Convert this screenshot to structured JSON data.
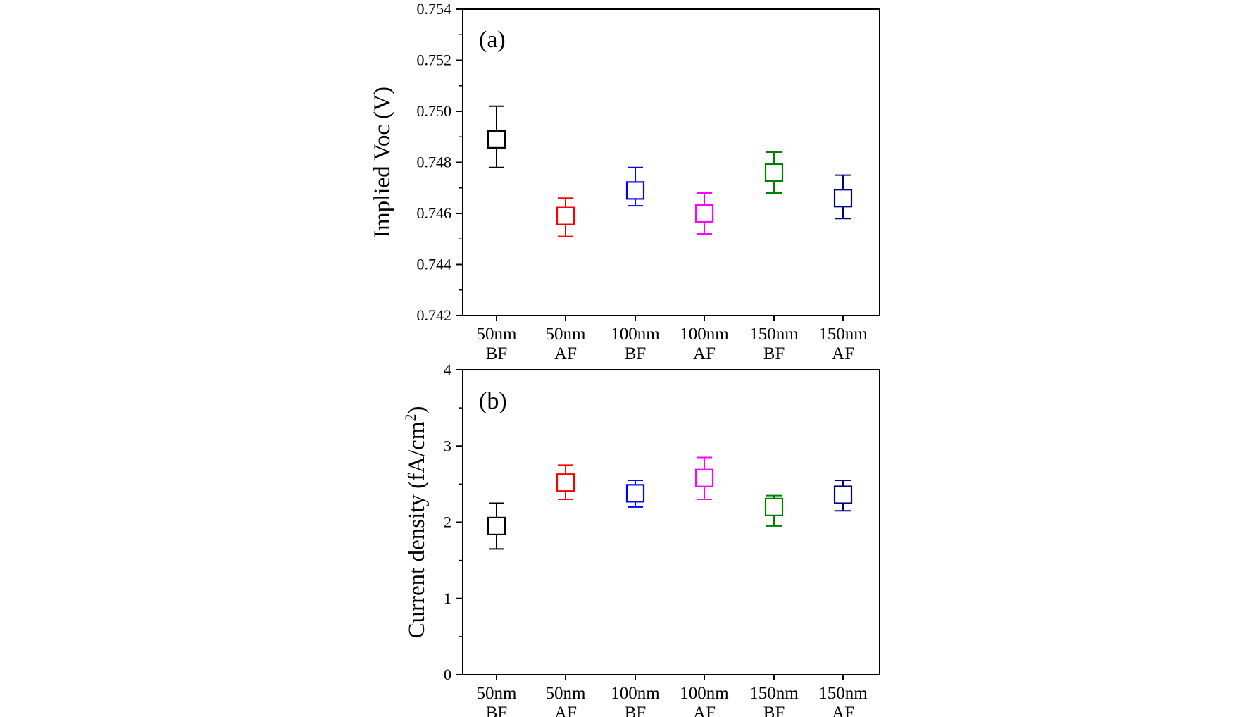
{
  "chart_data": [
    {
      "type": "scatter",
      "panel_label": "(a)",
      "ylabel": "Implied Voc (V)",
      "ylim": [
        0.742,
        0.754
      ],
      "yticks": [
        "0.742",
        "0.744",
        "0.746",
        "0.748",
        "0.750",
        "0.752",
        "0.754"
      ],
      "categories": [
        {
          "line1": "50nm",
          "line2": "BF"
        },
        {
          "line1": "50nm",
          "line2": "AF"
        },
        {
          "line1": "100nm",
          "line2": "BF"
        },
        {
          "line1": "100nm",
          "line2": "AF"
        },
        {
          "line1": "150nm",
          "line2": "BF"
        },
        {
          "line1": "150nm",
          "line2": "AF"
        }
      ],
      "points": [
        {
          "value": 0.7489,
          "err_low": 0.7478,
          "err_high": 0.7502,
          "color": "#000000"
        },
        {
          "value": 0.7459,
          "err_low": 0.7451,
          "err_high": 0.7466,
          "color": "#ff0000"
        },
        {
          "value": 0.7469,
          "err_low": 0.7463,
          "err_high": 0.7478,
          "color": "#0000ff"
        },
        {
          "value": 0.746,
          "err_low": 0.7452,
          "err_high": 0.7468,
          "color": "#ff00ff"
        },
        {
          "value": 0.7476,
          "err_low": 0.7468,
          "err_high": 0.7484,
          "color": "#008000"
        },
        {
          "value": 0.7466,
          "err_low": 0.7458,
          "err_high": 0.7475,
          "color": "#000080"
        }
      ],
      "marker": "open-square",
      "grid": false
    },
    {
      "type": "scatter",
      "panel_label": "(b)",
      "ylabel": "Current density (fA/cm",
      "ylabel_sup": "2",
      "ylabel_end": ")",
      "ylim": [
        0,
        4
      ],
      "yticks": [
        "0",
        "1",
        "2",
        "3",
        "4"
      ],
      "categories": [
        {
          "line1": "50nm",
          "line2": "BF"
        },
        {
          "line1": "50nm",
          "line2": "AF"
        },
        {
          "line1": "100nm",
          "line2": "BF"
        },
        {
          "line1": "100nm",
          "line2": "AF"
        },
        {
          "line1": "150nm",
          "line2": "BF"
        },
        {
          "line1": "150nm",
          "line2": "AF"
        }
      ],
      "points": [
        {
          "value": 1.95,
          "err_low": 1.65,
          "err_high": 2.25,
          "color": "#000000"
        },
        {
          "value": 2.52,
          "err_low": 2.3,
          "err_high": 2.75,
          "color": "#ff0000"
        },
        {
          "value": 2.38,
          "err_low": 2.2,
          "err_high": 2.55,
          "color": "#0000ff"
        },
        {
          "value": 2.58,
          "err_low": 2.3,
          "err_high": 2.85,
          "color": "#ff00ff"
        },
        {
          "value": 2.2,
          "err_low": 1.95,
          "err_high": 2.35,
          "color": "#008000"
        },
        {
          "value": 2.36,
          "err_low": 2.15,
          "err_high": 2.55,
          "color": "#000080"
        }
      ],
      "marker": "open-square",
      "grid": false
    }
  ]
}
